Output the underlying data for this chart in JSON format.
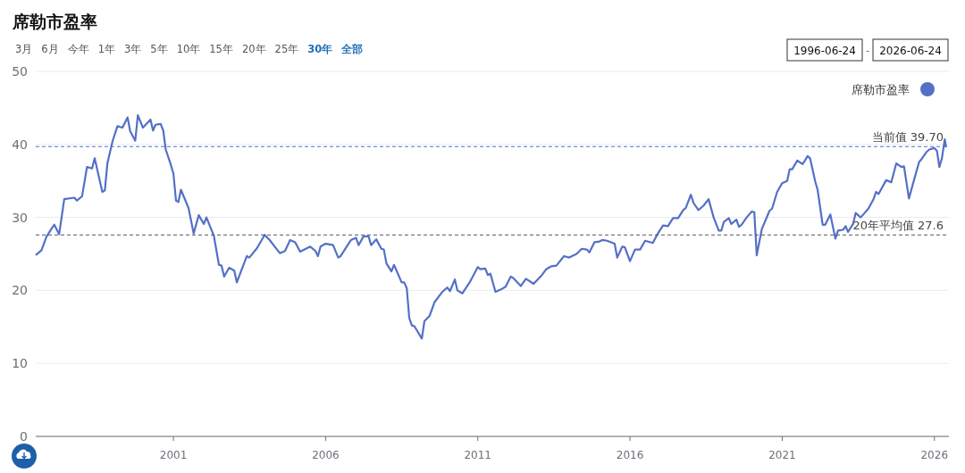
{
  "chart_data": {
    "type": "line",
    "title": "席勒市盈率",
    "annotations": [
      "3月",
      "6月",
      "今年",
      "1年",
      "3年",
      "5年",
      "10年",
      "15年",
      "20年",
      "25年",
      "30年",
      "全部",
      "1996-06-24",
      "-",
      "2026-06-24"
    ],
    "xlim": [
      "1996-06-24",
      "2026-06-24"
    ],
    "xticks": [
      {
        "value": "2001",
        "label": "2001"
      },
      {
        "value": "2006",
        "label": "2006"
      },
      {
        "value": "2011",
        "label": "2011"
      },
      {
        "value": "2016",
        "label": "2016"
      },
      {
        "value": "2021",
        "label": "2021"
      },
      {
        "value": "2026",
        "label": "2026"
      }
    ],
    "ylim": [
      0,
      50
    ],
    "yticks": [
      0,
      10,
      20,
      30,
      40,
      50
    ],
    "grid": "y",
    "legend": "top right",
    "marker": "none",
    "line_style": "solid",
    "ref_lines": [
      {
        "axis": "y",
        "value": 39.7,
        "label": "当前值 39.70",
        "color": "#5470c6",
        "line_style": "dashed"
      },
      {
        "axis": "y",
        "value": 27.6,
        "label": "20年平均值 27.6",
        "color": "#555555",
        "line_style": "dashed"
      }
    ],
    "series": [
      {
        "name": "席勒市盈率",
        "color": "#5470c6",
        "x": [
          "1996-07",
          "1996-09",
          "1996-11",
          "1997-02",
          "1997-04",
          "1997-06",
          "1997-10",
          "1997-11",
          "1998-01",
          "1998-03",
          "1998-05",
          "1998-06",
          "1998-09",
          "1998-10",
          "1998-11",
          "1999-01",
          "1999-03",
          "1999-05",
          "1999-07",
          "1999-08",
          "1999-10",
          "1999-11",
          "2000-01",
          "2000-04",
          "2000-05",
          "2000-06",
          "2000-08",
          "2000-09",
          "2000-10",
          "2000-12",
          "2001-01",
          "2001-02",
          "2001-03",
          "2001-04",
          "2001-07",
          "2001-09",
          "2001-11",
          "2002-01",
          "2002-02",
          "2002-05",
          "2002-07",
          "2002-08",
          "2002-09",
          "2002-11",
          "2003-01",
          "2003-02",
          "2003-06",
          "2003-07",
          "2003-10",
          "2004-01",
          "2004-03",
          "2004-05",
          "2004-07",
          "2004-09",
          "2004-11",
          "2005-01",
          "2005-03",
          "2005-07",
          "2005-09",
          "2005-10",
          "2005-11",
          "2006-01",
          "2006-04",
          "2006-06",
          "2006-07",
          "2006-11",
          "2007-01",
          "2007-02",
          "2007-04",
          "2007-06",
          "2007-07",
          "2007-09",
          "2007-11",
          "2007-12",
          "2008-01",
          "2008-03",
          "2008-04",
          "2008-07",
          "2008-08",
          "2008-09",
          "2008-10",
          "2008-11",
          "2008-12",
          "2009-03",
          "2009-04",
          "2009-06",
          "2009-08",
          "2009-11",
          "2010-01",
          "2010-02",
          "2010-04",
          "2010-05",
          "2010-07",
          "2010-10",
          "2011-01",
          "2011-02",
          "2011-04",
          "2011-05",
          "2011-06",
          "2011-08",
          "2011-10",
          "2011-12",
          "2012-02",
          "2012-03",
          "2012-06",
          "2012-08",
          "2012-11",
          "2013-02",
          "2013-04",
          "2013-05",
          "2013-06",
          "2013-08",
          "2013-11",
          "2014-01",
          "2014-04",
          "2014-06",
          "2014-08",
          "2014-09",
          "2014-11",
          "2015-01",
          "2015-02",
          "2015-04",
          "2015-07",
          "2015-08",
          "2015-10",
          "2015-11",
          "2016-01",
          "2016-03",
          "2016-05",
          "2016-07",
          "2016-10",
          "2016-12",
          "2017-02",
          "2017-04",
          "2017-06",
          "2017-08",
          "2017-10",
          "2017-11",
          "2018-01",
          "2018-02",
          "2018-04",
          "2018-06",
          "2018-08",
          "2018-10",
          "2018-12",
          "2019-01",
          "2019-02",
          "2019-04",
          "2019-05",
          "2019-07",
          "2019-08",
          "2019-09",
          "2019-11",
          "2020-01",
          "2020-02",
          "2020-03",
          "2020-05",
          "2020-08",
          "2020-09",
          "2020-11",
          "2021-01",
          "2021-03",
          "2021-04",
          "2021-05",
          "2021-07",
          "2021-09",
          "2021-10",
          "2021-11",
          "2021-12",
          "2022-02",
          "2022-03",
          "2022-05",
          "2022-06",
          "2022-08",
          "2022-10",
          "2022-11",
          "2023-01",
          "2023-02",
          "2023-03",
          "2023-05",
          "2023-06",
          "2023-08",
          "2023-11",
          "2024-01",
          "2024-02",
          "2024-03",
          "2024-06",
          "2024-08",
          "2024-10",
          "2024-12",
          "2025-01",
          "2025-03",
          "2025-05",
          "2025-07",
          "2025-08",
          "2025-10",
          "2025-11",
          "2026-01",
          "2026-02",
          "2026-03",
          "2026-04",
          "2026-05-05",
          "2026-05-20"
        ],
        "values": [
          24.9,
          25.5,
          27.4,
          29.0,
          27.7,
          32.5,
          32.7,
          32.3,
          32.9,
          36.9,
          36.7,
          38.1,
          33.5,
          33.7,
          37.4,
          40.4,
          42.5,
          42.3,
          43.7,
          41.8,
          40.5,
          44.0,
          42.3,
          43.4,
          41.9,
          42.7,
          42.8,
          41.9,
          39.3,
          37.2,
          36.0,
          32.3,
          32.1,
          33.8,
          31.3,
          27.8,
          30.3,
          29.1,
          30.0,
          27.5,
          23.5,
          23.4,
          21.9,
          23.1,
          22.7,
          21.1,
          24.7,
          24.5,
          25.8,
          27.6,
          26.9,
          26.0,
          25.1,
          25.4,
          26.9,
          26.6,
          25.3,
          26.0,
          25.4,
          24.7,
          26.0,
          26.4,
          26.2,
          24.5,
          24.7,
          26.9,
          27.2,
          26.2,
          27.4,
          27.4,
          26.2,
          27.0,
          25.7,
          25.6,
          23.7,
          22.6,
          23.5,
          21.1,
          21.1,
          20.3,
          16.2,
          15.2,
          15.1,
          13.4,
          15.8,
          16.5,
          18.4,
          19.8,
          20.4,
          19.9,
          21.5,
          20.0,
          19.6,
          21.2,
          23.2,
          22.9,
          23.0,
          22.1,
          22.3,
          19.8,
          20.1,
          20.5,
          21.9,
          21.7,
          20.6,
          21.6,
          20.9,
          22.0,
          22.9,
          23.1,
          23.3,
          23.4,
          24.7,
          24.5,
          25.0,
          25.7,
          25.6,
          25.2,
          26.6,
          26.7,
          26.9,
          26.8,
          26.4,
          24.5,
          26.0,
          25.9,
          24.0,
          25.6,
          25.6,
          26.8,
          26.5,
          27.8,
          28.9,
          28.8,
          29.9,
          29.9,
          31.0,
          31.3,
          33.1,
          32.0,
          31.0,
          31.6,
          32.5,
          30.0,
          28.2,
          28.2,
          29.4,
          29.9,
          29.1,
          29.7,
          28.7,
          29.0,
          30.0,
          30.8,
          30.7,
          24.8,
          28.4,
          30.9,
          31.2,
          33.5,
          34.7,
          35.0,
          36.6,
          36.6,
          37.8,
          37.3,
          37.8,
          38.4,
          38.1,
          34.9,
          33.8,
          29.0,
          29.0,
          30.4,
          27.1,
          28.2,
          28.3,
          28.8,
          28.0,
          29.1,
          30.6,
          30.0,
          31.2,
          32.5,
          33.5,
          33.2,
          35.1,
          34.8,
          37.4,
          36.9,
          37.0,
          32.6,
          35.1,
          37.6,
          38.0,
          39.0,
          39.3,
          39.5,
          39.1,
          36.9,
          38.1,
          40.7,
          39.7
        ]
      }
    ]
  }
}
